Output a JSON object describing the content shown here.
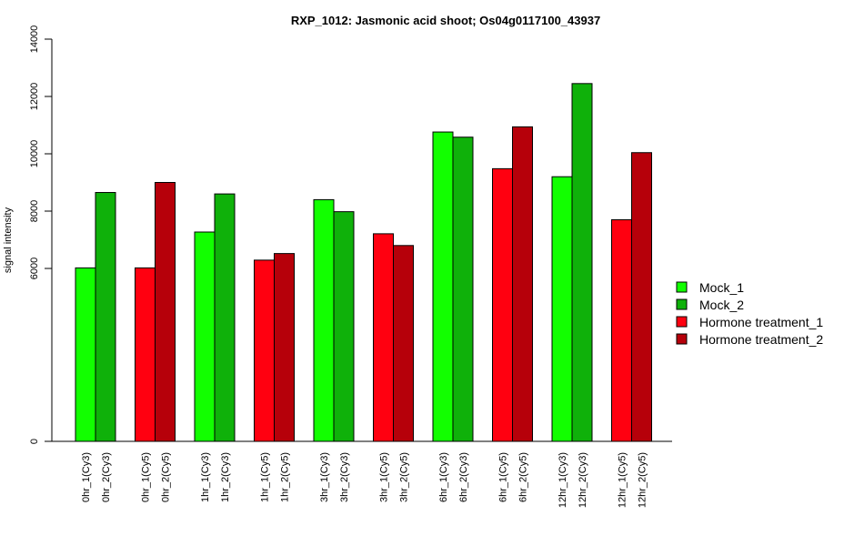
{
  "chart_data": {
    "type": "bar",
    "title": "RXP_1012: Jasmonic acid shoot; Os04g0117100_43937",
    "xlabel": "",
    "ylabel": "signal intensity",
    "yticks": [
      0,
      6000,
      8000,
      10000,
      12000,
      14000
    ],
    "y_axis_break": "0 to 5000 compressed",
    "categories": [
      "0hr_1(Cy3)",
      "0hr_2(Cy3)",
      "0hr_1(Cy5)",
      "0hr_2(Cy5)",
      "1hr_1(Cy3)",
      "1hr_2(Cy3)",
      "1hr_1(Cy5)",
      "1hr_2(Cy5)",
      "3hr_1(Cy3)",
      "3hr_2(Cy3)",
      "3hr_1(Cy5)",
      "3hr_2(Cy5)",
      "6hr_1(Cy3)",
      "6hr_2(Cy3)",
      "6hr_1(Cy5)",
      "6hr_2(Cy5)",
      "12hr_1(Cy3)",
      "12hr_2(Cy3)",
      "12hr_1(Cy5)",
      "12hr_2(Cy5)"
    ],
    "values": [
      6020,
      8650,
      6020,
      9000,
      7270,
      8600,
      6290,
      6520,
      8400,
      7980,
      7210,
      6800,
      10760,
      10580,
      9480,
      10940,
      9200,
      12450,
      7700,
      10040
    ],
    "series_index": [
      0,
      1,
      2,
      3,
      0,
      1,
      2,
      3,
      0,
      1,
      2,
      3,
      0,
      1,
      2,
      3,
      0,
      1,
      2,
      3
    ],
    "series": [
      {
        "name": "Mock_1",
        "color": "#12ff00"
      },
      {
        "name": "Mock_2",
        "color": "#0fb10a"
      },
      {
        "name": "Hormone treatment_1",
        "color": "#ff0010"
      },
      {
        "name": "Hormone treatment_2",
        "color": "#b6000a"
      }
    ],
    "legend_position": "right",
    "grid": false
  }
}
